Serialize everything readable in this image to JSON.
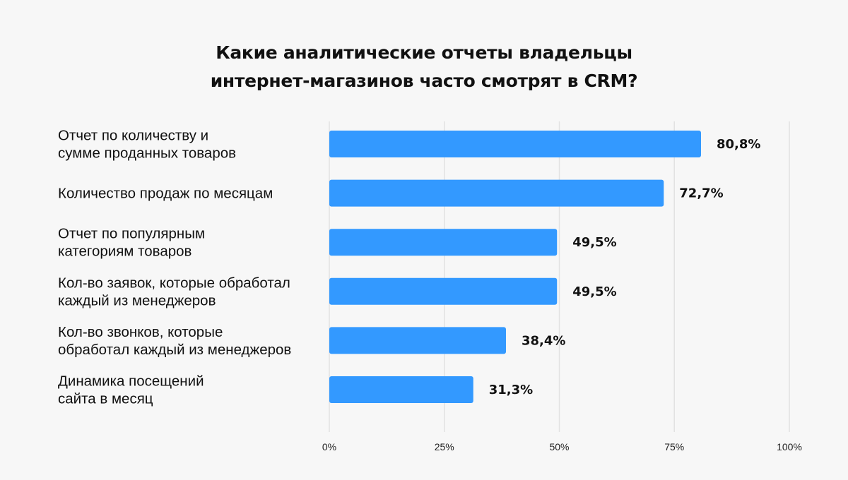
{
  "title_lines": [
    "Какие аналитические отчеты владельцы",
    "интернет-магазинов часто смотрят в CRM?"
  ],
  "chart_data": {
    "type": "bar",
    "orientation": "horizontal",
    "title": "Какие аналитические отчеты владельцы интернет-магазинов часто смотрят в CRM?",
    "categories": [
      [
        "Отчет по количеству и",
        "сумме проданных товаров"
      ],
      [
        "Количество продаж по месяцам"
      ],
      [
        "Отчет по популярным",
        "категориям товаров"
      ],
      [
        "Кол-во заявок, которые обработал",
        "каждый из менеджеров"
      ],
      [
        "Кол-во звонков, которые",
        "обработал каждый из менеджеров"
      ],
      [
        "Динамика посещений",
        "сайта в месяц"
      ]
    ],
    "values": [
      80.8,
      72.7,
      49.5,
      49.5,
      38.4,
      31.3
    ],
    "value_labels": [
      "80,8%",
      "72,7%",
      "49,5%",
      "49,5%",
      "38,4%",
      "31,3%"
    ],
    "xlim": [
      0,
      100
    ],
    "xticks": [
      0,
      25,
      50,
      75,
      100
    ],
    "xtick_labels": [
      "0%",
      "25%",
      "50%",
      "75%",
      "100%"
    ],
    "grid": true,
    "bar_color": "#3399ff",
    "grid_color": "#e2e2e2"
  }
}
